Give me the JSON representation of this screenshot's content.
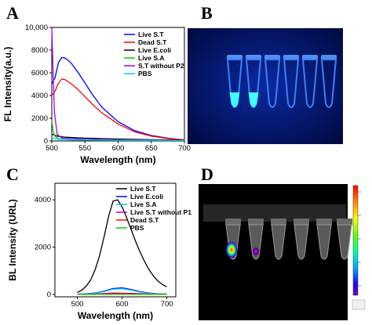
{
  "panels": [
    {
      "letter": "A"
    },
    {
      "letter": "B"
    },
    {
      "letter": "C"
    },
    {
      "letter": "D"
    }
  ],
  "colors": {
    "live_st": "#0000ff",
    "dead_st": "#ff0000",
    "live_ecoli": "#000000",
    "live_sa": "#00cc00",
    "st_without": "#aa00ff",
    "pbs": "#00d0f0",
    "tube_blue": "#2a6cff",
    "tube_cyan": "#40ffff",
    "photo_bg": "#001060"
  },
  "chart_data": [
    {
      "panel": "A",
      "type": "line",
      "xlabel": "Wavelength (nm)",
      "ylabel": "FL Intensity(a.u.)",
      "xlim": [
        500,
        700
      ],
      "ylim": [
        0,
        10000
      ],
      "xticks": [
        500,
        550,
        600,
        650,
        700
      ],
      "yticks": [
        0,
        2000,
        4000,
        6000,
        8000,
        10000
      ],
      "ytick_labels": [
        "0",
        "2000",
        "4000",
        "6000",
        "8000",
        "10,000"
      ],
      "legend_position": "top-right",
      "series": [
        {
          "name": "Live S.T",
          "color": "#0000ff",
          "x": [
            500,
            505,
            510,
            515,
            520,
            525,
            530,
            540,
            550,
            560,
            575,
            600,
            625,
            650,
            675,
            700
          ],
          "y": [
            5000,
            5600,
            6900,
            7350,
            7300,
            7100,
            6800,
            6000,
            5100,
            4200,
            3000,
            1700,
            900,
            480,
            250,
            100
          ]
        },
        {
          "name": "Dead S.T",
          "color": "#ff0000",
          "x": [
            500,
            505,
            510,
            515,
            520,
            525,
            530,
            540,
            550,
            560,
            575,
            600,
            625,
            650,
            675,
            700
          ],
          "y": [
            4000,
            4400,
            5100,
            5450,
            5400,
            5200,
            5000,
            4500,
            3900,
            3300,
            2500,
            1500,
            800,
            430,
            220,
            100
          ]
        },
        {
          "name": "Live E.coli",
          "color": "#000000",
          "x": [
            500,
            505,
            510,
            520,
            550,
            600,
            650,
            700
          ],
          "y": [
            600,
            500,
            400,
            330,
            250,
            170,
            110,
            80
          ]
        },
        {
          "name": "Live S.A",
          "color": "#00cc00",
          "x": [
            500,
            502,
            505,
            510,
            520,
            550,
            600,
            650,
            700
          ],
          "y": [
            1800,
            900,
            400,
            200,
            120,
            80,
            60,
            50,
            40
          ]
        },
        {
          "name": "S.T without P2",
          "color": "#aa00ff",
          "x": [
            500,
            502,
            504,
            508,
            515,
            550,
            600,
            650,
            700
          ],
          "y": [
            9900,
            6000,
            2500,
            600,
            250,
            150,
            100,
            70,
            50
          ]
        },
        {
          "name": "PBS",
          "color": "#00d0f0",
          "x": [
            500,
            505,
            510,
            520,
            550,
            600,
            650,
            700
          ],
          "y": [
            300,
            200,
            150,
            120,
            90,
            70,
            50,
            40
          ]
        }
      ]
    },
    {
      "panel": "C",
      "type": "line",
      "xlabel": "Wavelength (nm)",
      "ylabel": "BL Intensity (URL)",
      "xlim": [
        450,
        720
      ],
      "ylim": [
        -100,
        4700
      ],
      "xticks": [
        500,
        600,
        700
      ],
      "yticks": [
        0,
        2000,
        4000
      ],
      "legend_position": "top-right",
      "series": [
        {
          "name": "Live S.T",
          "color": "#000000",
          "x": [
            500,
            510,
            520,
            530,
            540,
            550,
            560,
            570,
            580,
            590,
            600,
            610,
            620,
            630,
            640,
            650,
            660,
            670,
            680,
            690,
            700
          ],
          "y": [
            80,
            180,
            350,
            620,
            1050,
            1650,
            2450,
            3300,
            3950,
            4000,
            3700,
            3250,
            2750,
            2250,
            1800,
            1400,
            1050,
            780,
            570,
            420,
            320
          ]
        },
        {
          "name": "Live E.coli",
          "color": "#0000ff",
          "x": [
            500,
            520,
            540,
            560,
            580,
            600,
            620,
            640,
            660,
            680,
            700
          ],
          "y": [
            10,
            25,
            60,
            140,
            250,
            280,
            210,
            120,
            60,
            30,
            15
          ]
        },
        {
          "name": "Live S.A",
          "color": "#00d0f0",
          "x": [
            500,
            520,
            540,
            560,
            580,
            600,
            620,
            640,
            660,
            680,
            700
          ],
          "y": [
            8,
            20,
            50,
            120,
            220,
            240,
            180,
            100,
            50,
            25,
            10
          ]
        },
        {
          "name": "Live S.T  without P1",
          "color": "#aa00ff",
          "x": [
            500,
            540,
            580,
            620,
            660,
            700
          ],
          "y": [
            5,
            20,
            60,
            50,
            20,
            5
          ]
        },
        {
          "name": "Dead S.T",
          "color": "#ff0000",
          "x": [
            500,
            540,
            580,
            620,
            660,
            700
          ],
          "y": [
            5,
            15,
            45,
            35,
            15,
            5
          ]
        },
        {
          "name": "PBS",
          "color": "#00cc00",
          "x": [
            500,
            700
          ],
          "y": [
            2,
            2
          ]
        }
      ]
    }
  ],
  "scale_bar": {
    "stops": [
      "#ff0000",
      "#ff8800",
      "#ffff00",
      "#66ff00",
      "#00ffaa",
      "#00aaff",
      "#2200ff",
      "#7700aa"
    ]
  }
}
